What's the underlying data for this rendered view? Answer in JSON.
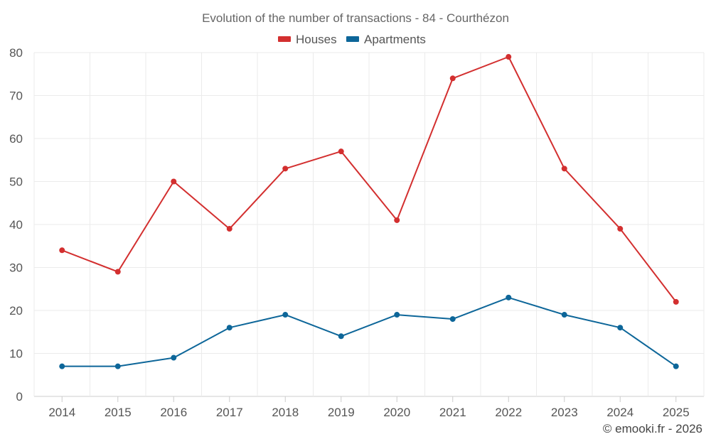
{
  "chart_data": {
    "type": "line",
    "title": "Evolution of the number of transactions - 84 - Courthézon",
    "categories": [
      "2014",
      "2015",
      "2016",
      "2017",
      "2018",
      "2019",
      "2020",
      "2021",
      "2022",
      "2023",
      "2024",
      "2025"
    ],
    "series": [
      {
        "name": "Houses",
        "color": "#d32f2f",
        "values": [
          34,
          29,
          50,
          39,
          53,
          57,
          41,
          74,
          79,
          53,
          39,
          22
        ]
      },
      {
        "name": "Apartments",
        "color": "#0d6699",
        "values": [
          7,
          7,
          9,
          16,
          19,
          14,
          19,
          18,
          23,
          19,
          16,
          7
        ]
      }
    ],
    "ylim": [
      0,
      80
    ],
    "yticks": [
      0,
      10,
      20,
      30,
      40,
      50,
      60,
      70,
      80
    ],
    "xlabel": "",
    "ylabel": "",
    "grid": true,
    "legend_position": "top-center"
  },
  "credit": "© emooki.fr - 2026"
}
